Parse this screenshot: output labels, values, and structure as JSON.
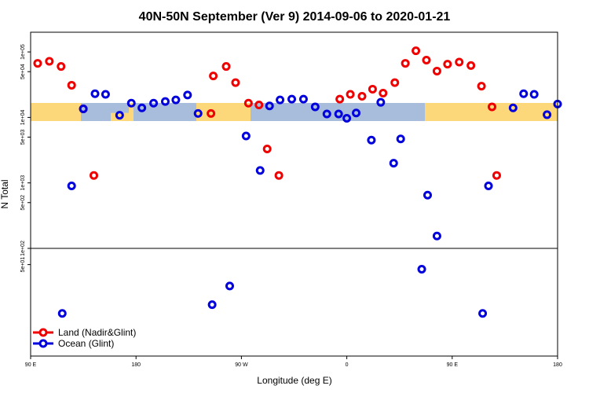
{
  "chart_data": {
    "type": "scatter",
    "title": "40N-50N September (Ver 9)   2014-09-06 to 2020-01-21",
    "xlabel": "Longitude (deg E)",
    "ylabel": "N Total",
    "x_ticks": [
      {
        "value": 90,
        "label": "90 E"
      },
      {
        "value": 180,
        "label": "180"
      },
      {
        "value": 270,
        "label": "90 W"
      },
      {
        "value": 360,
        "label": "0"
      },
      {
        "value": 450,
        "label": "90 E"
      },
      {
        "value": 540,
        "label": "180"
      }
    ],
    "xlim": [
      90,
      540
    ],
    "upper_panel": {
      "scale": "log",
      "ylim": [
        100,
        200000
      ],
      "y_ticks": [
        {
          "value": 100000,
          "label": "1e+05"
        },
        {
          "value": 50000,
          "label": "5e+04"
        },
        {
          "value": 10000,
          "label": "1e+04"
        },
        {
          "value": 5000,
          "label": "5e+03"
        },
        {
          "value": 1000,
          "label": "1e+03"
        },
        {
          "value": 500,
          "label": "5e+02"
        }
      ]
    },
    "lower_panel": {
      "scale": "log",
      "ylim": [
        1,
        100
      ],
      "y_ticks": [
        {
          "value": 100,
          "label": "1e+02"
        },
        {
          "value": 50,
          "label": "5e+01"
        }
      ]
    },
    "map_strip": {
      "land_color": "#a8bcdc",
      "ocean_color": "#fdd87a"
    },
    "legend_position": "bottom-left",
    "series": [
      {
        "name": "Land (Nadir&Glint)",
        "color": "#ee0000",
        "points": [
          {
            "x": 96,
            "y": 67000,
            "panel": "upper"
          },
          {
            "x": 106,
            "y": 72000,
            "panel": "upper"
          },
          {
            "x": 116,
            "y": 60000,
            "panel": "upper"
          },
          {
            "x": 125,
            "y": 31000,
            "panel": "upper"
          },
          {
            "x": 135,
            "y": 13500,
            "panel": "upper"
          },
          {
            "x": 144,
            "y": 1300,
            "panel": "upper"
          },
          {
            "x": 244,
            "y": 11500,
            "panel": "upper"
          },
          {
            "x": 246,
            "y": 43000,
            "panel": "upper"
          },
          {
            "x": 257,
            "y": 60000,
            "panel": "upper"
          },
          {
            "x": 265,
            "y": 34000,
            "panel": "upper"
          },
          {
            "x": 276,
            "y": 16500,
            "panel": "upper"
          },
          {
            "x": 285,
            "y": 15500,
            "panel": "upper"
          },
          {
            "x": 292,
            "y": 3300,
            "panel": "upper"
          },
          {
            "x": 302,
            "y": 1300,
            "panel": "upper"
          },
          {
            "x": 354,
            "y": 19000,
            "panel": "upper"
          },
          {
            "x": 363,
            "y": 22500,
            "panel": "upper"
          },
          {
            "x": 373,
            "y": 21000,
            "panel": "upper"
          },
          {
            "x": 382,
            "y": 27000,
            "panel": "upper"
          },
          {
            "x": 391,
            "y": 23500,
            "panel": "upper"
          },
          {
            "x": 401,
            "y": 34000,
            "panel": "upper"
          },
          {
            "x": 410,
            "y": 67000,
            "panel": "upper"
          },
          {
            "x": 419,
            "y": 104000,
            "panel": "upper"
          },
          {
            "x": 428,
            "y": 75000,
            "panel": "upper"
          },
          {
            "x": 437,
            "y": 51000,
            "panel": "upper"
          },
          {
            "x": 446,
            "y": 65000,
            "panel": "upper"
          },
          {
            "x": 456,
            "y": 70000,
            "panel": "upper"
          },
          {
            "x": 466,
            "y": 62000,
            "panel": "upper"
          },
          {
            "x": 475,
            "y": 30000,
            "panel": "upper"
          },
          {
            "x": 484,
            "y": 14500,
            "panel": "upper"
          },
          {
            "x": 488,
            "y": 1300,
            "panel": "upper"
          }
        ]
      },
      {
        "name": "Ocean (Glint)",
        "color": "#0000dd",
        "points": [
          {
            "x": 125,
            "y": 900,
            "panel": "upper"
          },
          {
            "x": 135,
            "y": 13500,
            "panel": "upper"
          },
          {
            "x": 145,
            "y": 23000,
            "panel": "upper"
          },
          {
            "x": 154,
            "y": 22500,
            "panel": "upper"
          },
          {
            "x": 166,
            "y": 10800,
            "panel": "upper"
          },
          {
            "x": 176,
            "y": 16500,
            "panel": "upper"
          },
          {
            "x": 185,
            "y": 14000,
            "panel": "upper"
          },
          {
            "x": 195,
            "y": 16500,
            "panel": "upper"
          },
          {
            "x": 205,
            "y": 17500,
            "panel": "upper"
          },
          {
            "x": 214,
            "y": 18500,
            "panel": "upper"
          },
          {
            "x": 224,
            "y": 22000,
            "panel": "upper"
          },
          {
            "x": 233,
            "y": 11500,
            "panel": "upper"
          },
          {
            "x": 274,
            "y": 5200,
            "panel": "upper"
          },
          {
            "x": 286,
            "y": 1550,
            "panel": "upper"
          },
          {
            "x": 294,
            "y": 15000,
            "panel": "upper"
          },
          {
            "x": 303,
            "y": 18500,
            "panel": "upper"
          },
          {
            "x": 313,
            "y": 19000,
            "panel": "upper"
          },
          {
            "x": 323,
            "y": 19000,
            "panel": "upper"
          },
          {
            "x": 333,
            "y": 14500,
            "panel": "upper"
          },
          {
            "x": 343,
            "y": 11300,
            "panel": "upper"
          },
          {
            "x": 353,
            "y": 11300,
            "panel": "upper"
          },
          {
            "x": 360,
            "y": 9700,
            "panel": "upper"
          },
          {
            "x": 368,
            "y": 11700,
            "panel": "upper"
          },
          {
            "x": 381,
            "y": 4500,
            "panel": "upper"
          },
          {
            "x": 389,
            "y": 17000,
            "panel": "upper"
          },
          {
            "x": 400,
            "y": 2000,
            "panel": "upper"
          },
          {
            "x": 406,
            "y": 4700,
            "panel": "upper"
          },
          {
            "x": 429,
            "y": 650,
            "panel": "upper"
          },
          {
            "x": 481,
            "y": 900,
            "panel": "upper"
          },
          {
            "x": 502,
            "y": 14000,
            "panel": "upper"
          },
          {
            "x": 511,
            "y": 23000,
            "panel": "upper"
          },
          {
            "x": 520,
            "y": 22500,
            "panel": "upper"
          },
          {
            "x": 531,
            "y": 11000,
            "panel": "upper"
          },
          {
            "x": 540,
            "y": 16000,
            "panel": "upper"
          },
          {
            "x": 117,
            "y": 6.2,
            "panel": "lower"
          },
          {
            "x": 245,
            "y": 9,
            "panel": "lower"
          },
          {
            "x": 260,
            "y": 20,
            "panel": "lower"
          },
          {
            "x": 424,
            "y": 41,
            "panel": "lower"
          },
          {
            "x": 437,
            "y": 170,
            "panel": "lower"
          },
          {
            "x": 476,
            "y": 6.2,
            "panel": "lower"
          }
        ]
      }
    ]
  }
}
